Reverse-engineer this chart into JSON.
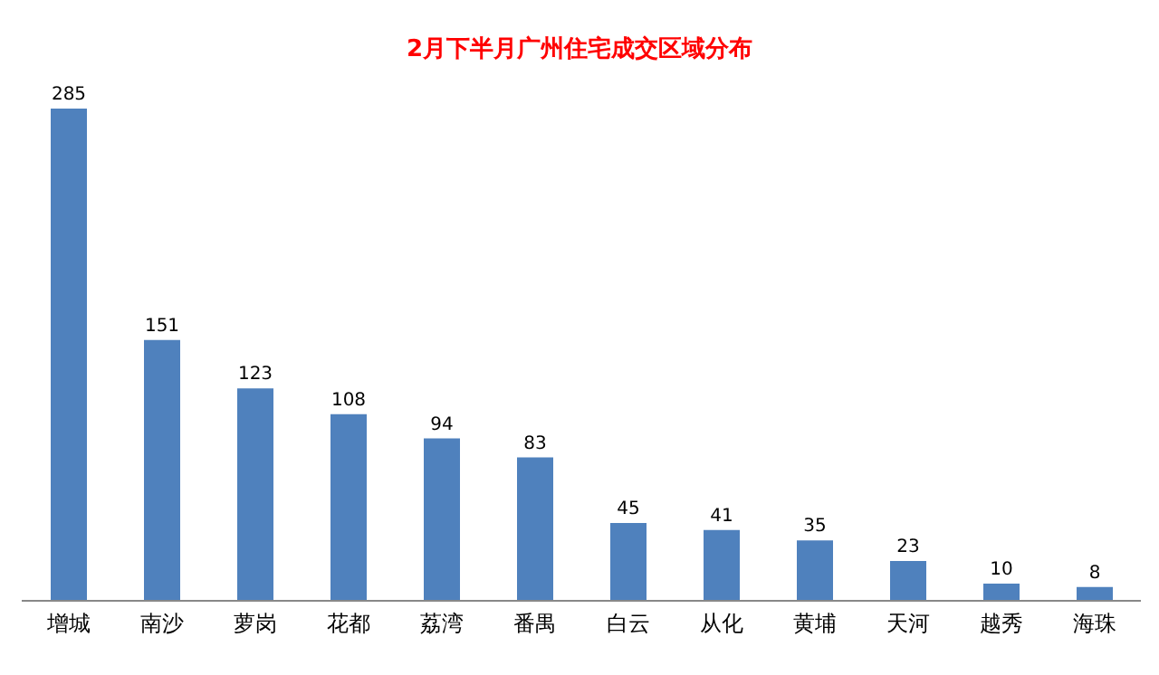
{
  "chart_data": {
    "type": "bar",
    "title": "2月下半月广州住宅成交区域分布",
    "categories": [
      "增城",
      "南沙",
      "萝岗",
      "花都",
      "荔湾",
      "番禺",
      "白云",
      "从化",
      "黄埔",
      "天河",
      "越秀",
      "海珠"
    ],
    "values": [
      285,
      151,
      123,
      108,
      94,
      83,
      45,
      41,
      35,
      23,
      10,
      8
    ],
    "color": "#4f81bd",
    "data_labels": true,
    "tick_labels": "x"
  }
}
